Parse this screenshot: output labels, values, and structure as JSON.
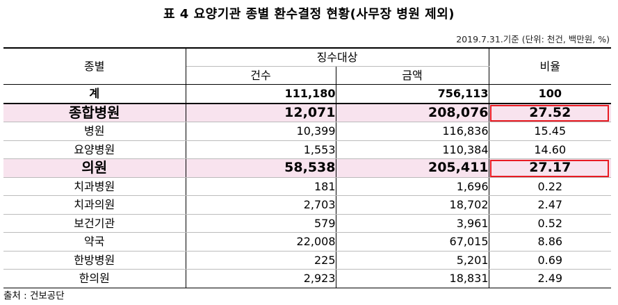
{
  "title": "표 4 요양기관 종별 환수결정 현황(사무장 병원 제외)",
  "note": "2019.7.31.기준 (단위: 천건, 백만원, %)",
  "header": {
    "kind": "종별",
    "group": "징수대상",
    "count": "건수",
    "amount": "금액",
    "ratio": "비율"
  },
  "rows": [
    {
      "kind": "계",
      "count": "111,180",
      "amount": "756,113",
      "ratio": "100"
    },
    {
      "kind": "종합병원",
      "count": "12,071",
      "amount": "208,076",
      "ratio": "27.52"
    },
    {
      "kind": "병원",
      "count": "10,399",
      "amount": "116,836",
      "ratio": "15.45"
    },
    {
      "kind": "요양병원",
      "count": "1,553",
      "amount": "110,384",
      "ratio": "14.60"
    },
    {
      "kind": "의원",
      "count": "58,538",
      "amount": "205,411",
      "ratio": "27.17"
    },
    {
      "kind": "치과병원",
      "count": "181",
      "amount": "1,696",
      "ratio": "0.22"
    },
    {
      "kind": "치과의원",
      "count": "2,703",
      "amount": "18,702",
      "ratio": "2.47"
    },
    {
      "kind": "보건기관",
      "count": "579",
      "amount": "3,961",
      "ratio": "0.52"
    },
    {
      "kind": "약국",
      "count": "22,008",
      "amount": "67,015",
      "ratio": "8.86"
    },
    {
      "kind": "한방병원",
      "count": "225",
      "amount": "5,201",
      "ratio": "0.69"
    },
    {
      "kind": "한의원",
      "count": "2,923",
      "amount": "18,831",
      "ratio": "2.49"
    }
  ],
  "source": "출처 : 건보공단",
  "colors": {
    "highlight_row_bg": "#f8e3ee",
    "highlight_box": "#e81b23"
  }
}
